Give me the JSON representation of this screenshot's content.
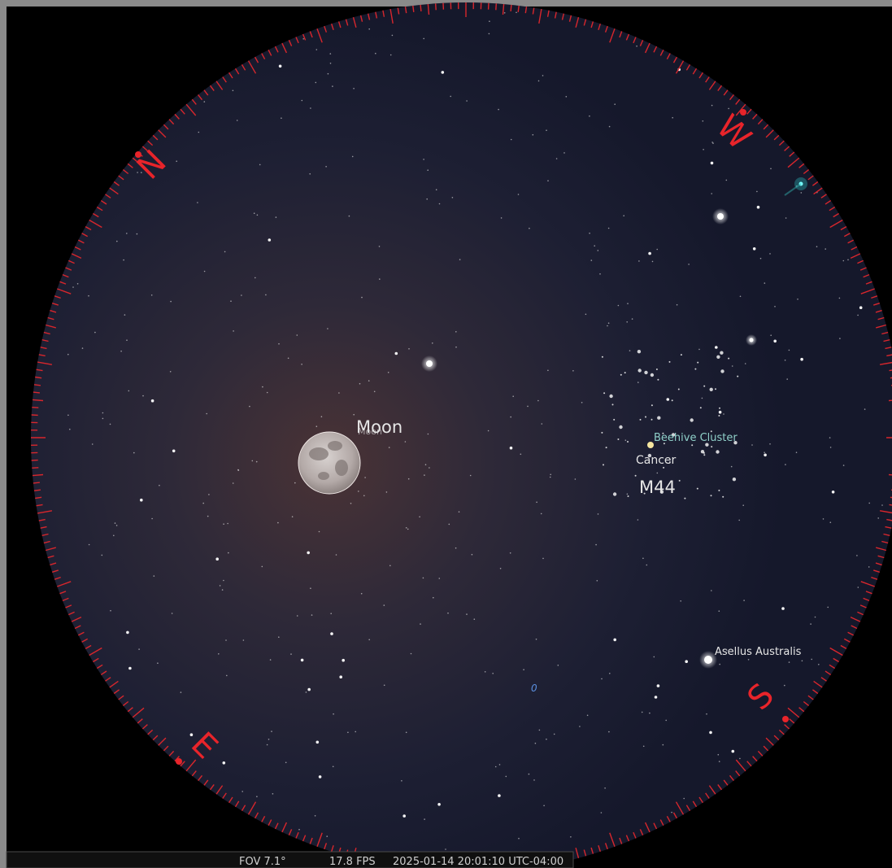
{
  "labels": {
    "moon": "Moon",
    "moon_small": "Moon",
    "beehive": "Beehive Cluster",
    "cancer": "Cancer",
    "m44": "M44",
    "asellus": "Asellus Australis",
    "marker": "0"
  },
  "compass": {
    "north": "N",
    "west": "W",
    "south": "S",
    "east": "E"
  },
  "status_bar": {
    "fov": "FOV 7.1°",
    "fps": "17.8 FPS",
    "datetime": "2025-01-14 20:01:10 UTC-04:00"
  }
}
